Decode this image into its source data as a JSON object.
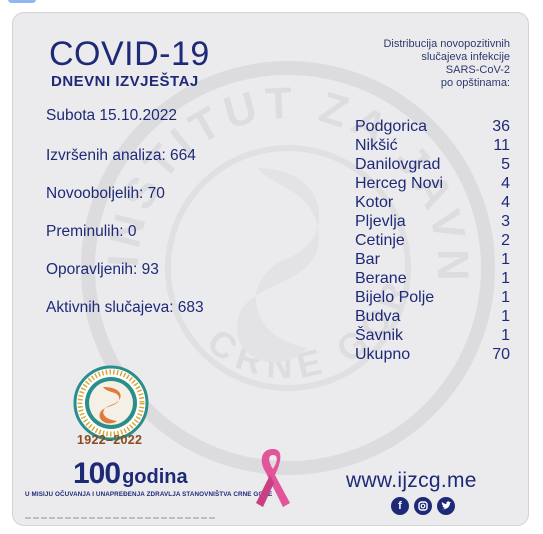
{
  "header": {
    "title": "COVID-19",
    "subtitle": "DNEVNI IZVJEŠTAJ"
  },
  "distribution_note": {
    "line1": "Distribucija novopozitivnih",
    "line2": "slučajeva infekcije",
    "line3": "SARS-CoV-2",
    "line4": "po opštinama:"
  },
  "stats": {
    "date": "Subota 15.10.2022",
    "analyses": "Izvršenih analiza: 664",
    "new_cases": "Novooboljelih: 70",
    "deaths": "Preminulih: 0",
    "recovered": "Oporavljenih: 93",
    "active": "Aktivnih slučajeva: 683"
  },
  "municipalities": [
    {
      "name": "Podgorica",
      "count": "36"
    },
    {
      "name": "Nikšić",
      "count": "11"
    },
    {
      "name": "Danilovgrad",
      "count": "5"
    },
    {
      "name": "Herceg Novi",
      "count": "4"
    },
    {
      "name": "Kotor",
      "count": "4"
    },
    {
      "name": "Pljevlja",
      "count": "3"
    },
    {
      "name": "Cetinje",
      "count": "2"
    },
    {
      "name": "Bar",
      "count": "1"
    },
    {
      "name": "Berane",
      "count": "1"
    },
    {
      "name": "Bijelo Polje",
      "count": "1"
    },
    {
      "name": "Budva",
      "count": "1"
    },
    {
      "name": "Šavnik",
      "count": "1"
    },
    {
      "name": "Ukupno",
      "count": "70"
    }
  ],
  "footer": {
    "logo_text": "INSTITUT ZA JAVNO ZDRAVLJE CRNE GORE",
    "years": "1922–2022",
    "anniversary_number": "100",
    "anniversary_word": "godina",
    "mission": "U MISIJU OČUVANJA I UNAPREĐENJA ZDRAVLJA STANOVNIŠTVA CRNE GORE",
    "website": "www.ijzcg.me",
    "social_icons": [
      "facebook-icon",
      "instagram-icon",
      "twitter-icon"
    ]
  },
  "watermark_text": "INSTITUT ZA JAVNO ZDRAVLJE CRNE GORE",
  "colors": {
    "primary": "#1e2a78",
    "card_bg": "#ebebed",
    "ribbon": "#e2559a",
    "logo_teal": "#2a8f8c",
    "logo_orange": "#e07b39"
  }
}
